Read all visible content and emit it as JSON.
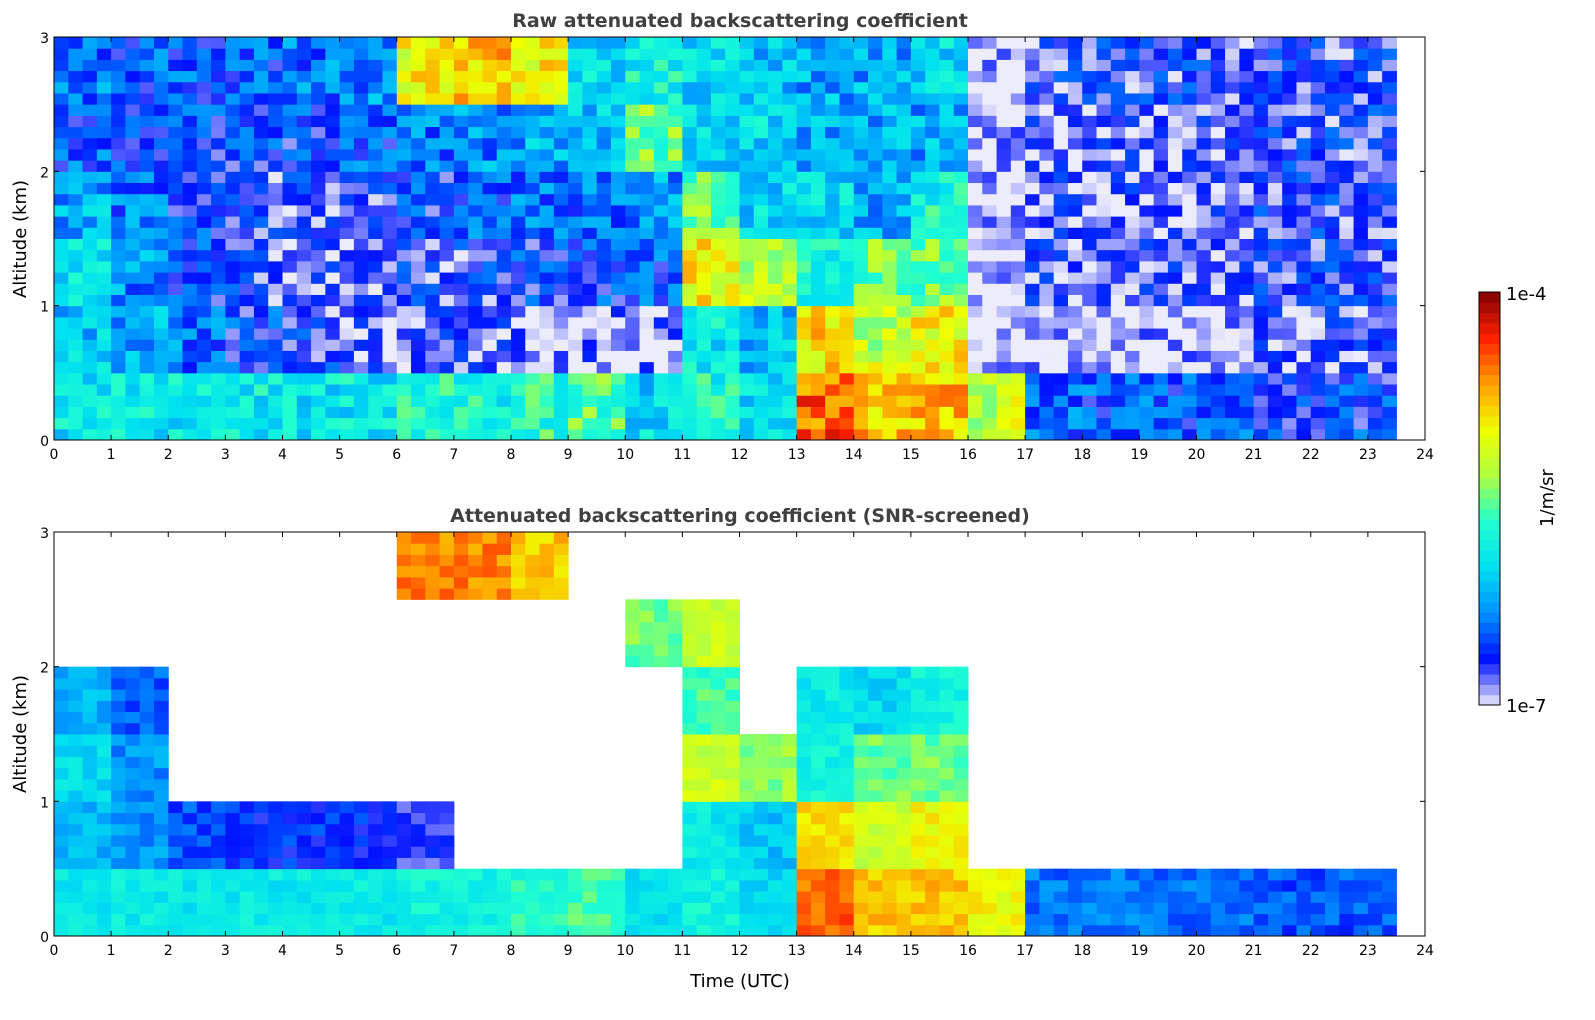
{
  "chart_data": [
    {
      "type": "heatmap",
      "title": "Raw attenuated backscattering coefficient",
      "xlabel": "",
      "ylabel": "Altitude (km)",
      "xlim": [
        0,
        24
      ],
      "ylim": [
        0,
        3
      ],
      "xticks": [
        "0",
        "1",
        "2",
        "3",
        "4",
        "5",
        "6",
        "7",
        "8",
        "9",
        "10",
        "11",
        "12",
        "13",
        "14",
        "15",
        "16",
        "17",
        "18",
        "19",
        "20",
        "21",
        "22",
        "23",
        "24"
      ],
      "yticks": [
        "0",
        "1",
        "2",
        "3"
      ],
      "x_bin_hours": 1,
      "y_bin_km": 0.5,
      "data_end_hour": 23.5,
      "value_scale": "log10 (1/m/sr)",
      "log10_values_by_altitude_row": [
        [
          -5.9,
          -5.9,
          -5.9,
          -5.9,
          -5.9,
          -5.9,
          -5.8,
          -5.8,
          -5.7,
          -5.6,
          -6.0,
          -5.8,
          -6.0,
          -4.5,
          -4.8,
          -4.8,
          -5.2,
          -6.4,
          -6.5,
          -6.5,
          -6.5,
          -6.6,
          -6.6,
          -6.6
        ],
        [
          -6.1,
          -6.2,
          -6.4,
          -6.6,
          -6.7,
          -6.8,
          -6.8,
          -6.8,
          -6.9,
          -6.9,
          -6.9,
          -5.9,
          -6.1,
          -4.9,
          -5.2,
          -5.0,
          -7,
          -7,
          -7,
          -7,
          -7,
          -6.8,
          -6.8,
          -6.8
        ],
        [
          -5.9,
          -6.3,
          -6.6,
          -6.7,
          -6.8,
          -6.8,
          -6.7,
          -6.7,
          -6.6,
          -6.6,
          -6.5,
          -5.0,
          -5.2,
          -5.8,
          -5.5,
          -5.5,
          -7,
          -6.8,
          -6.8,
          -6.8,
          -6.8,
          -6.7,
          -6.7,
          -6.7
        ],
        [
          -6.2,
          -6.4,
          -6.6,
          -6.7,
          -6.7,
          -6.7,
          -6.6,
          -6.5,
          -6.4,
          -6.4,
          -6.3,
          -5.5,
          -6.0,
          -6.0,
          -6.2,
          -5.8,
          -7,
          -6.8,
          -6.8,
          -6.8,
          -6.8,
          -6.7,
          -6.7,
          -6.7
        ],
        [
          -6.5,
          -6.6,
          -6.6,
          -6.6,
          -6.6,
          -6.5,
          -6.4,
          -6.3,
          -6.2,
          -6.1,
          -5.5,
          -6.0,
          -6.0,
          -6.2,
          -6.2,
          -6.2,
          -7,
          -6.8,
          -6.8,
          -6.8,
          -6.8,
          -6.7,
          -6.7,
          -6.7
        ],
        [
          -6.4,
          -6.5,
          -6.5,
          -6.5,
          -6.4,
          -6.3,
          -5.0,
          -4.8,
          -5.0,
          -6.0,
          -5.8,
          -6.0,
          -6.1,
          -6.2,
          -6.2,
          -6.0,
          -7,
          -6.7,
          -6.7,
          -6.7,
          -6.7,
          -6.7,
          -6.7,
          -6.7
        ]
      ]
    },
    {
      "type": "heatmap",
      "title": "Attenuated backscattering coefficient (SNR-screened)",
      "xlabel": "Time (UTC)",
      "ylabel": "Altitude (km)",
      "xlim": [
        0,
        24
      ],
      "ylim": [
        0,
        3
      ],
      "xticks": [
        "0",
        "1",
        "2",
        "3",
        "4",
        "5",
        "6",
        "7",
        "8",
        "9",
        "10",
        "11",
        "12",
        "13",
        "14",
        "15",
        "16",
        "17",
        "18",
        "19",
        "20",
        "21",
        "22",
        "23",
        "24"
      ],
      "yticks": [
        "0",
        "1",
        "2",
        "3"
      ],
      "x_bin_hours": 1,
      "y_bin_km": 0.5,
      "data_end_hour": 23.5,
      "value_scale": "log10 (1/m/sr)",
      "log10_values_by_altitude_row": [
        [
          -5.9,
          -5.9,
          -5.9,
          -5.9,
          -5.9,
          -5.9,
          -5.8,
          -5.8,
          -5.7,
          -5.6,
          -6.0,
          -5.8,
          -6.0,
          -4.5,
          -4.8,
          -4.8,
          -5.0,
          -6.4,
          -6.4,
          -6.4,
          -6.4,
          -6.5,
          -6.5,
          -6.5
        ],
        [
          -6.2,
          -6.3,
          -6.5,
          -6.6,
          -6.6,
          -6.6,
          -6.7,
          null,
          null,
          null,
          null,
          -5.9,
          -6.1,
          -4.9,
          -5.2,
          -5.0,
          null,
          null,
          null,
          null,
          null,
          null,
          null,
          null
        ],
        [
          -6.0,
          -6.3,
          null,
          null,
          null,
          null,
          null,
          null,
          null,
          null,
          null,
          -5.2,
          -5.4,
          -5.8,
          -5.5,
          -5.5,
          null,
          null,
          null,
          null,
          null,
          null,
          null,
          null
        ],
        [
          -6.2,
          -6.5,
          null,
          null,
          null,
          null,
          null,
          null,
          null,
          null,
          null,
          -5.6,
          null,
          -5.9,
          -6.0,
          -5.8,
          null,
          null,
          null,
          null,
          null,
          null,
          null,
          null
        ],
        [
          null,
          null,
          null,
          null,
          null,
          null,
          null,
          null,
          null,
          null,
          -5.5,
          -5.2,
          null,
          null,
          null,
          null,
          null,
          null,
          null,
          null,
          null,
          null,
          null,
          null
        ],
        [
          null,
          null,
          null,
          null,
          null,
          null,
          -4.6,
          -4.6,
          -4.8,
          null,
          null,
          null,
          null,
          null,
          null,
          null,
          null,
          null,
          null,
          null,
          null,
          null,
          null,
          null
        ]
      ]
    }
  ],
  "colorbar": {
    "label": "1/m/sr",
    "max_label": "1e-4",
    "min_label": "1e-7",
    "range_log10": [
      -7,
      -4
    ],
    "colors": [
      "#ececfb",
      "#0010ff",
      "#0090ff",
      "#00e0f0",
      "#20ffd0",
      "#b0ff40",
      "#f0ff00",
      "#ffa000",
      "#ff2000",
      "#800000"
    ]
  }
}
